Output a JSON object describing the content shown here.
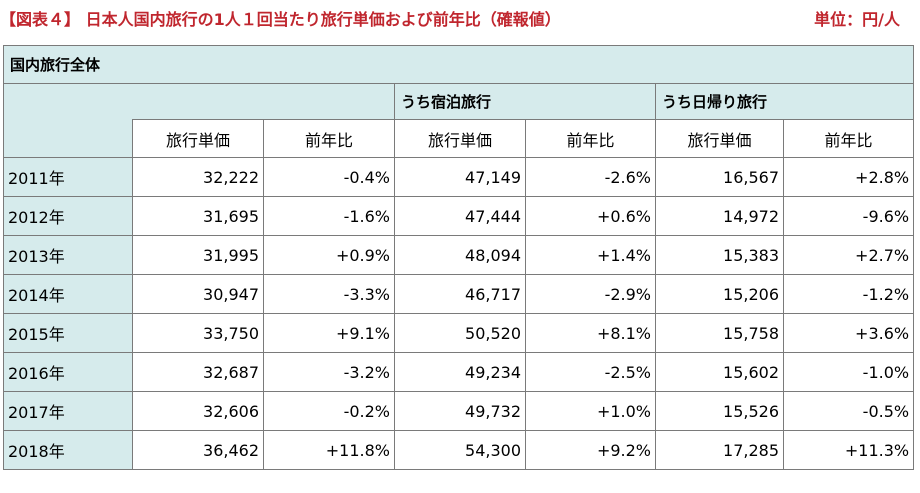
{
  "caption": "【図表４】 日本人国内旅行の1人１回当たり旅行単価および前年比（確報値）",
  "unit": "単位：円/人",
  "table": {
    "group_all": "国内旅行全体",
    "group_stay": "うち宿泊旅行",
    "group_day": "うち日帰り旅行",
    "col_price": "旅行単価",
    "col_yoy": "前年比",
    "rows": [
      {
        "year": "2011年",
        "all_price": "32,222",
        "all_yoy": "-0.4%",
        "stay_price": "47,149",
        "stay_yoy": "-2.6%",
        "day_price": "16,567",
        "day_yoy": "+2.8%"
      },
      {
        "year": "2012年",
        "all_price": "31,695",
        "all_yoy": "-1.6%",
        "stay_price": "47,444",
        "stay_yoy": "+0.6%",
        "day_price": "14,972",
        "day_yoy": "-9.6%"
      },
      {
        "year": "2013年",
        "all_price": "31,995",
        "all_yoy": "+0.9%",
        "stay_price": "48,094",
        "stay_yoy": "+1.4%",
        "day_price": "15,383",
        "day_yoy": "+2.7%"
      },
      {
        "year": "2014年",
        "all_price": "30,947",
        "all_yoy": "-3.3%",
        "stay_price": "46,717",
        "stay_yoy": "-2.9%",
        "day_price": "15,206",
        "day_yoy": "-1.2%"
      },
      {
        "year": "2015年",
        "all_price": "33,750",
        "all_yoy": "+9.1%",
        "stay_price": "50,520",
        "stay_yoy": "+8.1%",
        "day_price": "15,758",
        "day_yoy": "+3.6%"
      },
      {
        "year": "2016年",
        "all_price": "32,687",
        "all_yoy": "-3.2%",
        "stay_price": "49,234",
        "stay_yoy": "-2.5%",
        "day_price": "15,602",
        "day_yoy": "-1.0%"
      },
      {
        "year": "2017年",
        "all_price": "32,606",
        "all_yoy": "-0.2%",
        "stay_price": "49,732",
        "stay_yoy": "+1.0%",
        "day_price": "15,526",
        "day_yoy": "-0.5%"
      },
      {
        "year": "2018年",
        "all_price": "36,462",
        "all_yoy": "+11.8%",
        "stay_price": "54,300",
        "stay_yoy": "+9.2%",
        "day_price": "17,285",
        "day_yoy": "+11.3%"
      }
    ]
  }
}
